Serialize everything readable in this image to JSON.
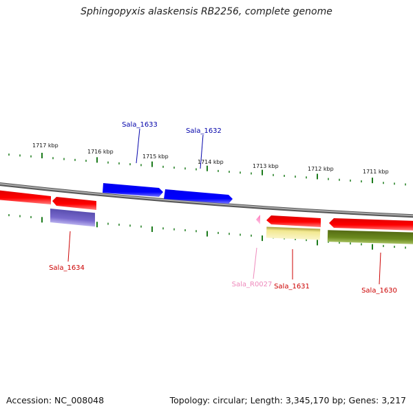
{
  "title": "Sphingopyxis alaskensis RB2256, complete genome",
  "footer": {
    "accession": "Accession: NC_008048",
    "topology": "Topology: circular; Length: 3,345,170 bp; Genes: 3,217"
  },
  "colors": {
    "plus_strand_gene": "#0000ff",
    "minus_strand_gene": "#ff0000",
    "rna_gene": "#ff99cc",
    "blue_label": "#0000aa",
    "red_label": "#cc0000",
    "pink_label": "#ee88bb",
    "tick": "#1a7a1a",
    "backbone": "#888888"
  },
  "ruler": {
    "top_labels": [
      "1717 kbp",
      "1716 kbp",
      "1715 kbp",
      "1714 kbp",
      "1713 kbp",
      "1712 kbp",
      "1711 kbp"
    ]
  },
  "genes": [
    {
      "label": "Sala_1633",
      "strand": "+",
      "color": "#0000ff"
    },
    {
      "label": "Sala_1632",
      "strand": "+",
      "color": "#0000ff"
    },
    {
      "label": "Sala_1634",
      "strand": "-",
      "color": "#ff0000"
    },
    {
      "label": "Sala_R0027",
      "strand": "-",
      "color": "#ff99cc"
    },
    {
      "label": "Sala_1631",
      "strand": "-",
      "color": "#ff0000"
    },
    {
      "label": "Sala_1630",
      "strand": "-",
      "color": "#ff0000"
    }
  ]
}
